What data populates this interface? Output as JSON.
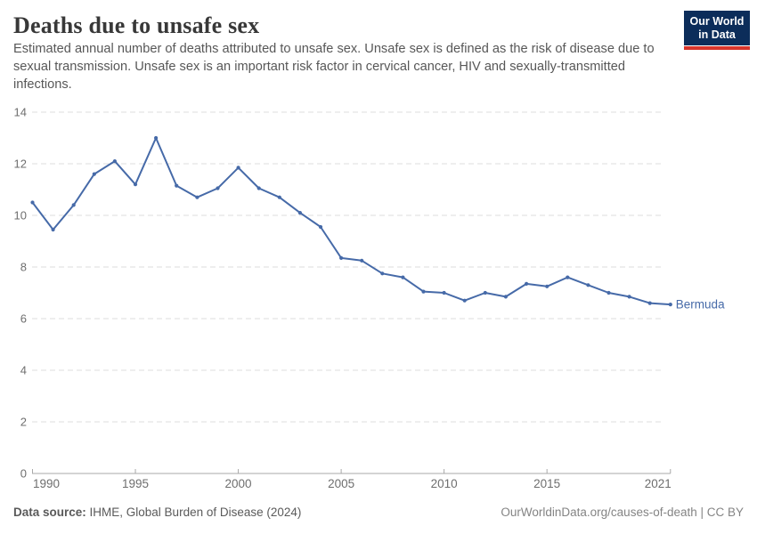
{
  "header": {
    "title": "Deaths due to unsafe sex",
    "subtitle": "Estimated annual number of deaths attributed to unsafe sex. Unsafe sex is defined as the risk of disease due to sexual transmission. Unsafe sex is an important risk factor in cervical cancer, HIV and sexually-transmitted infections.",
    "logo": {
      "line1": "Our World",
      "line2": "in Data",
      "bg_color": "#0c2d5a",
      "bar_color": "#d8352b"
    }
  },
  "chart_data": {
    "type": "line",
    "title": "Deaths due to unsafe sex",
    "xlabel": "",
    "ylabel": "",
    "xlim": [
      1990,
      2021
    ],
    "ylim": [
      0,
      14
    ],
    "x_ticks": [
      1990,
      1995,
      2000,
      2005,
      2010,
      2015,
      2021
    ],
    "y_ticks": [
      0,
      2,
      4,
      6,
      8,
      10,
      12,
      14
    ],
    "grid": "horizontal-dashed",
    "legend_position": "end-of-line-label",
    "colors": {
      "line": "#466aa8",
      "grid": "#dedede",
      "axis_line": "#a8a8a8",
      "tick_label": "#6e6e6e"
    },
    "series": [
      {
        "name": "Bermuda",
        "color": "#466aa8",
        "x": [
          1990,
          1991,
          1992,
          1993,
          1994,
          1995,
          1996,
          1997,
          1998,
          1999,
          2000,
          2001,
          2002,
          2003,
          2004,
          2005,
          2006,
          2007,
          2008,
          2009,
          2010,
          2011,
          2012,
          2013,
          2014,
          2015,
          2016,
          2017,
          2018,
          2019,
          2020,
          2021
        ],
        "values": [
          10.5,
          9.45,
          10.4,
          11.6,
          12.1,
          11.2,
          13.0,
          11.15,
          10.7,
          11.05,
          11.85,
          11.05,
          10.7,
          10.1,
          9.55,
          8.35,
          8.25,
          7.75,
          7.6,
          7.05,
          7.0,
          6.7,
          7.0,
          6.85,
          7.35,
          7.25,
          7.6,
          7.3,
          7.0,
          6.85,
          6.6,
          6.55
        ]
      }
    ]
  },
  "footer": {
    "source_label": "Data source:",
    "source_text": " IHME, Global Burden of Disease (2024)",
    "link_text": "OurWorldinData.org/causes-of-death | CC BY"
  }
}
